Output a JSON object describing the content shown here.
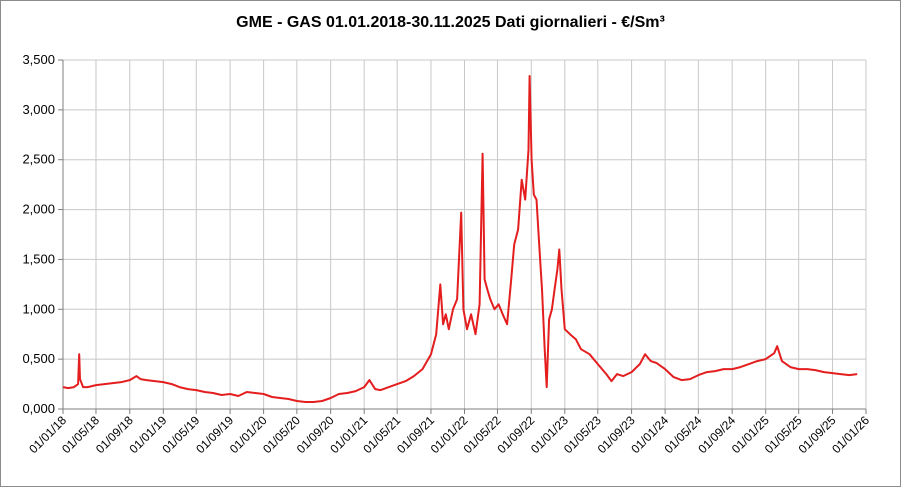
{
  "chart_data": {
    "type": "line",
    "title": "GME - GAS 01.01.2018-30.11.2025 Dati giornalieri - €/Sm³",
    "xlabel": "",
    "ylabel": "",
    "ylim": [
      0,
      3.5
    ],
    "yticks": [
      "0,000",
      "0,500",
      "1,000",
      "1,500",
      "2,000",
      "2,500",
      "3,000",
      "3,500"
    ],
    "xlim": [
      "2018-01-01",
      "2026-01-01"
    ],
    "xticks": [
      {
        "date": "2018-01-01",
        "label": "01/01/18"
      },
      {
        "date": "2018-05-01",
        "label": "01/05/18"
      },
      {
        "date": "2018-09-01",
        "label": "01/09/18"
      },
      {
        "date": "2019-01-01",
        "label": "01/01/19"
      },
      {
        "date": "2019-05-01",
        "label": "01/05/19"
      },
      {
        "date": "2019-09-01",
        "label": "01/09/19"
      },
      {
        "date": "2020-01-01",
        "label": "01/01/20"
      },
      {
        "date": "2020-05-01",
        "label": "01/05/20"
      },
      {
        "date": "2020-09-01",
        "label": "01/09/20"
      },
      {
        "date": "2021-01-01",
        "label": "01/01/21"
      },
      {
        "date": "2021-05-01",
        "label": "01/05/21"
      },
      {
        "date": "2021-09-01",
        "label": "01/09/21"
      },
      {
        "date": "2022-01-01",
        "label": "01/01/22"
      },
      {
        "date": "2022-05-01",
        "label": "01/05/22"
      },
      {
        "date": "2022-09-01",
        "label": "01/09/22"
      },
      {
        "date": "2023-01-01",
        "label": "01/01/23"
      },
      {
        "date": "2023-05-01",
        "label": "01/05/23"
      },
      {
        "date": "2023-09-01",
        "label": "01/09/23"
      },
      {
        "date": "2024-01-01",
        "label": "01/01/24"
      },
      {
        "date": "2024-05-01",
        "label": "01/05/24"
      },
      {
        "date": "2024-09-01",
        "label": "01/09/24"
      },
      {
        "date": "2025-01-01",
        "label": "01/01/25"
      },
      {
        "date": "2025-05-01",
        "label": "01/05/25"
      },
      {
        "date": "2025-09-01",
        "label": "01/09/25"
      },
      {
        "date": "2026-01-01",
        "label": "01/01/26"
      }
    ],
    "grid": true,
    "series": [
      {
        "color": "#e41e1e",
        "points": [
          [
            "2018-01-01",
            0.22
          ],
          [
            "2018-01-20",
            0.21
          ],
          [
            "2018-02-10",
            0.22
          ],
          [
            "2018-02-25",
            0.25
          ],
          [
            "2018-03-01",
            0.55
          ],
          [
            "2018-03-04",
            0.3
          ],
          [
            "2018-03-15",
            0.22
          ],
          [
            "2018-04-01",
            0.22
          ],
          [
            "2018-05-01",
            0.24
          ],
          [
            "2018-06-01",
            0.25
          ],
          [
            "2018-07-01",
            0.26
          ],
          [
            "2018-08-01",
            0.27
          ],
          [
            "2018-09-01",
            0.29
          ],
          [
            "2018-09-25",
            0.33
          ],
          [
            "2018-10-10",
            0.3
          ],
          [
            "2018-11-01",
            0.29
          ],
          [
            "2018-12-01",
            0.28
          ],
          [
            "2019-01-01",
            0.27
          ],
          [
            "2019-02-01",
            0.25
          ],
          [
            "2019-03-01",
            0.22
          ],
          [
            "2019-04-01",
            0.2
          ],
          [
            "2019-05-01",
            0.19
          ],
          [
            "2019-06-01",
            0.17
          ],
          [
            "2019-07-01",
            0.16
          ],
          [
            "2019-08-01",
            0.14
          ],
          [
            "2019-09-01",
            0.15
          ],
          [
            "2019-10-01",
            0.13
          ],
          [
            "2019-11-01",
            0.17
          ],
          [
            "2019-12-01",
            0.16
          ],
          [
            "2020-01-01",
            0.15
          ],
          [
            "2020-02-01",
            0.12
          ],
          [
            "2020-03-01",
            0.11
          ],
          [
            "2020-04-01",
            0.1
          ],
          [
            "2020-05-01",
            0.08
          ],
          [
            "2020-06-01",
            0.07
          ],
          [
            "2020-07-01",
            0.07
          ],
          [
            "2020-08-01",
            0.08
          ],
          [
            "2020-09-01",
            0.11
          ],
          [
            "2020-10-01",
            0.15
          ],
          [
            "2020-11-01",
            0.16
          ],
          [
            "2020-12-01",
            0.18
          ],
          [
            "2021-01-01",
            0.22
          ],
          [
            "2021-01-20",
            0.29
          ],
          [
            "2021-02-10",
            0.2
          ],
          [
            "2021-03-01",
            0.19
          ],
          [
            "2021-04-01",
            0.22
          ],
          [
            "2021-05-01",
            0.25
          ],
          [
            "2021-06-01",
            0.28
          ],
          [
            "2021-07-01",
            0.33
          ],
          [
            "2021-08-01",
            0.4
          ],
          [
            "2021-09-01",
            0.55
          ],
          [
            "2021-09-20",
            0.75
          ],
          [
            "2021-10-05",
            1.25
          ],
          [
            "2021-10-15",
            0.85
          ],
          [
            "2021-10-25",
            0.95
          ],
          [
            "2021-11-05",
            0.8
          ],
          [
            "2021-11-20",
            1.0
          ],
          [
            "2021-12-05",
            1.1
          ],
          [
            "2021-12-20",
            1.97
          ],
          [
            "2021-12-28",
            1.0
          ],
          [
            "2022-01-10",
            0.8
          ],
          [
            "2022-01-25",
            0.95
          ],
          [
            "2022-02-10",
            0.75
          ],
          [
            "2022-02-25",
            1.05
          ],
          [
            "2022-03-08",
            2.56
          ],
          [
            "2022-03-15",
            1.3
          ],
          [
            "2022-03-25",
            1.2
          ],
          [
            "2022-04-05",
            1.1
          ],
          [
            "2022-04-20",
            1.0
          ],
          [
            "2022-05-05",
            1.05
          ],
          [
            "2022-05-20",
            0.95
          ],
          [
            "2022-06-05",
            0.85
          ],
          [
            "2022-06-20",
            1.3
          ],
          [
            "2022-07-01",
            1.65
          ],
          [
            "2022-07-15",
            1.8
          ],
          [
            "2022-07-28",
            2.3
          ],
          [
            "2022-08-10",
            2.1
          ],
          [
            "2022-08-22",
            2.6
          ],
          [
            "2022-08-26",
            3.34
          ],
          [
            "2022-09-02",
            2.5
          ],
          [
            "2022-09-10",
            2.15
          ],
          [
            "2022-09-20",
            2.1
          ],
          [
            "2022-10-01",
            1.6
          ],
          [
            "2022-10-10",
            1.2
          ],
          [
            "2022-10-20",
            0.6
          ],
          [
            "2022-10-27",
            0.22
          ],
          [
            "2022-11-05",
            0.9
          ],
          [
            "2022-11-15",
            1.0
          ],
          [
            "2022-11-25",
            1.2
          ],
          [
            "2022-12-05",
            1.4
          ],
          [
            "2022-12-12",
            1.6
          ],
          [
            "2022-12-20",
            1.2
          ],
          [
            "2023-01-01",
            0.8
          ],
          [
            "2023-01-20",
            0.75
          ],
          [
            "2023-02-10",
            0.7
          ],
          [
            "2023-03-01",
            0.6
          ],
          [
            "2023-04-01",
            0.55
          ],
          [
            "2023-05-01",
            0.45
          ],
          [
            "2023-06-01",
            0.35
          ],
          [
            "2023-06-20",
            0.28
          ],
          [
            "2023-07-10",
            0.35
          ],
          [
            "2023-08-01",
            0.33
          ],
          [
            "2023-09-01",
            0.37
          ],
          [
            "2023-10-01",
            0.45
          ],
          [
            "2023-10-20",
            0.55
          ],
          [
            "2023-11-10",
            0.48
          ],
          [
            "2023-12-01",
            0.46
          ],
          [
            "2024-01-01",
            0.4
          ],
          [
            "2024-02-01",
            0.32
          ],
          [
            "2024-03-01",
            0.29
          ],
          [
            "2024-04-01",
            0.3
          ],
          [
            "2024-05-01",
            0.34
          ],
          [
            "2024-06-01",
            0.37
          ],
          [
            "2024-07-01",
            0.38
          ],
          [
            "2024-08-01",
            0.4
          ],
          [
            "2024-09-01",
            0.4
          ],
          [
            "2024-10-01",
            0.42
          ],
          [
            "2024-11-01",
            0.45
          ],
          [
            "2024-12-01",
            0.48
          ],
          [
            "2025-01-01",
            0.5
          ],
          [
            "2025-02-01",
            0.56
          ],
          [
            "2025-02-12",
            0.63
          ],
          [
            "2025-03-01",
            0.48
          ],
          [
            "2025-04-01",
            0.42
          ],
          [
            "2025-05-01",
            0.4
          ],
          [
            "2025-06-01",
            0.4
          ],
          [
            "2025-07-01",
            0.39
          ],
          [
            "2025-08-01",
            0.37
          ],
          [
            "2025-09-01",
            0.36
          ],
          [
            "2025-10-01",
            0.35
          ],
          [
            "2025-11-01",
            0.34
          ],
          [
            "2025-11-30",
            0.35
          ]
        ]
      }
    ]
  }
}
